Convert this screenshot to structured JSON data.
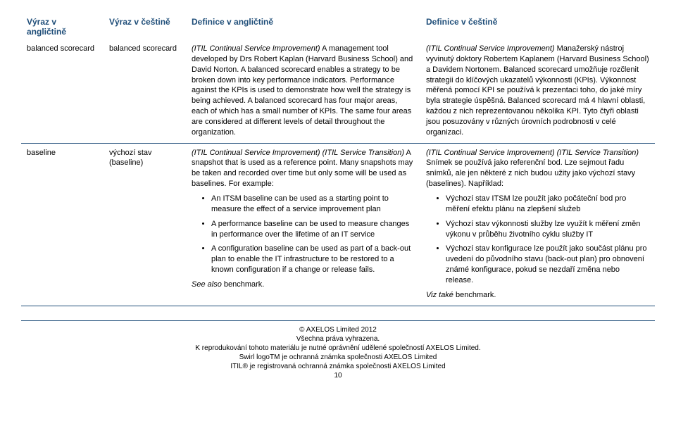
{
  "headers": {
    "col1": "Výraz v angličtině",
    "col2": "Výraz v češtině",
    "col3": "Definice v angličtině",
    "col4": "Definice v češtině"
  },
  "row1": {
    "term_en": "balanced scorecard",
    "term_cs": "balanced scorecard",
    "def_en_prefix": "(ITIL Continual Service Improvement)",
    "def_en_body": " A management tool developed by Drs Robert Kaplan (Harvard Business School) and David Norton. A balanced scorecard enables a strategy to be broken down into key performance indicators. Performance against the KPIs is used to demonstrate how well the strategy is being achieved. A balanced scorecard has four major areas, each of which has a small number of KPIs. The same four areas are considered at different levels of detail throughout the organization.",
    "def_cs_prefix": "(ITIL Continual Service Improvement)",
    "def_cs_body": " Manažerský nástroj vyvinutý doktory Robertem Kaplanem (Harvard Business School) a Davidem Nortonem. Balanced scorecard umožňuje rozčlenit strategii do klíčových ukazatelů výkonnosti (KPIs). Výkonnost měřená pomocí KPI se používá k prezentaci toho, do jaké míry byla strategie úspěšná. Balanced scorecard má 4 hlavní oblasti, každou z nich reprezentovanou několika KPI. Tyto čtyři oblasti jsou posuzovány v různých úrovních podrobnosti v celé organizaci."
  },
  "row2": {
    "term_en": "baseline",
    "term_cs_l1": "výchozí stav",
    "term_cs_l2": "(baseline)",
    "def_en_prefix": "(ITIL Continual Service Improvement) (ITIL Service Transition)",
    "def_en_body": " A snapshot that is used as a reference point. Many snapshots may be taken and recorded over time but only some will be used as baselines. For example:",
    "bullets_en": {
      "b1": "An ITSM baseline can be used as a starting point to measure the effect of a service improvement plan",
      "b2": "A performance baseline can be used to measure changes in performance over the lifetime of an IT service",
      "b3": "A configuration baseline can be used as part of a back-out plan to enable the IT infrastructure to be restored to a known configuration if a change or release fails."
    },
    "seealso_en_prefix": "See also",
    "seealso_en_body": " benchmark.",
    "def_cs_prefix": "(ITIL Continual Service Improvement) (ITIL Service Transition)",
    "def_cs_body": " Snímek se používá jako referenční bod. Lze sejmout řadu snímků, ale jen některé z nich budou užity jako výchozí stavy (baselines). Například:",
    "bullets_cs": {
      "b1": "Výchozí stav ITSM lze použít jako počáteční bod pro měření efektu plánu na zlepšení služeb",
      "b2": "Výchozí stav výkonnosti služby lze využít k měření změn výkonu v průběhu životního cyklu služby IT",
      "b3": "Výchozí stav konfigurace lze použít jako součást plánu pro uvedení do původního stavu (back-out plan) pro obnovení známé konfigurace, pokud se nezdaří změna nebo release."
    },
    "seealso_cs_prefix": "Viz také",
    "seealso_cs_body": " benchmark."
  },
  "footer": {
    "l1": "© AXELOS Limited 2012",
    "l2": "Všechna práva vyhrazena.",
    "l3": "K reprodukování tohoto materiálu je nutné oprávnění udělené společností AXELOS Limited.",
    "l4": "Swirl logoTM je ochranná známka společnosti AXELOS Limited",
    "l5": "ITIL® je registrovaná ochranná známka společnosti AXELOS Limited",
    "page": "10"
  }
}
